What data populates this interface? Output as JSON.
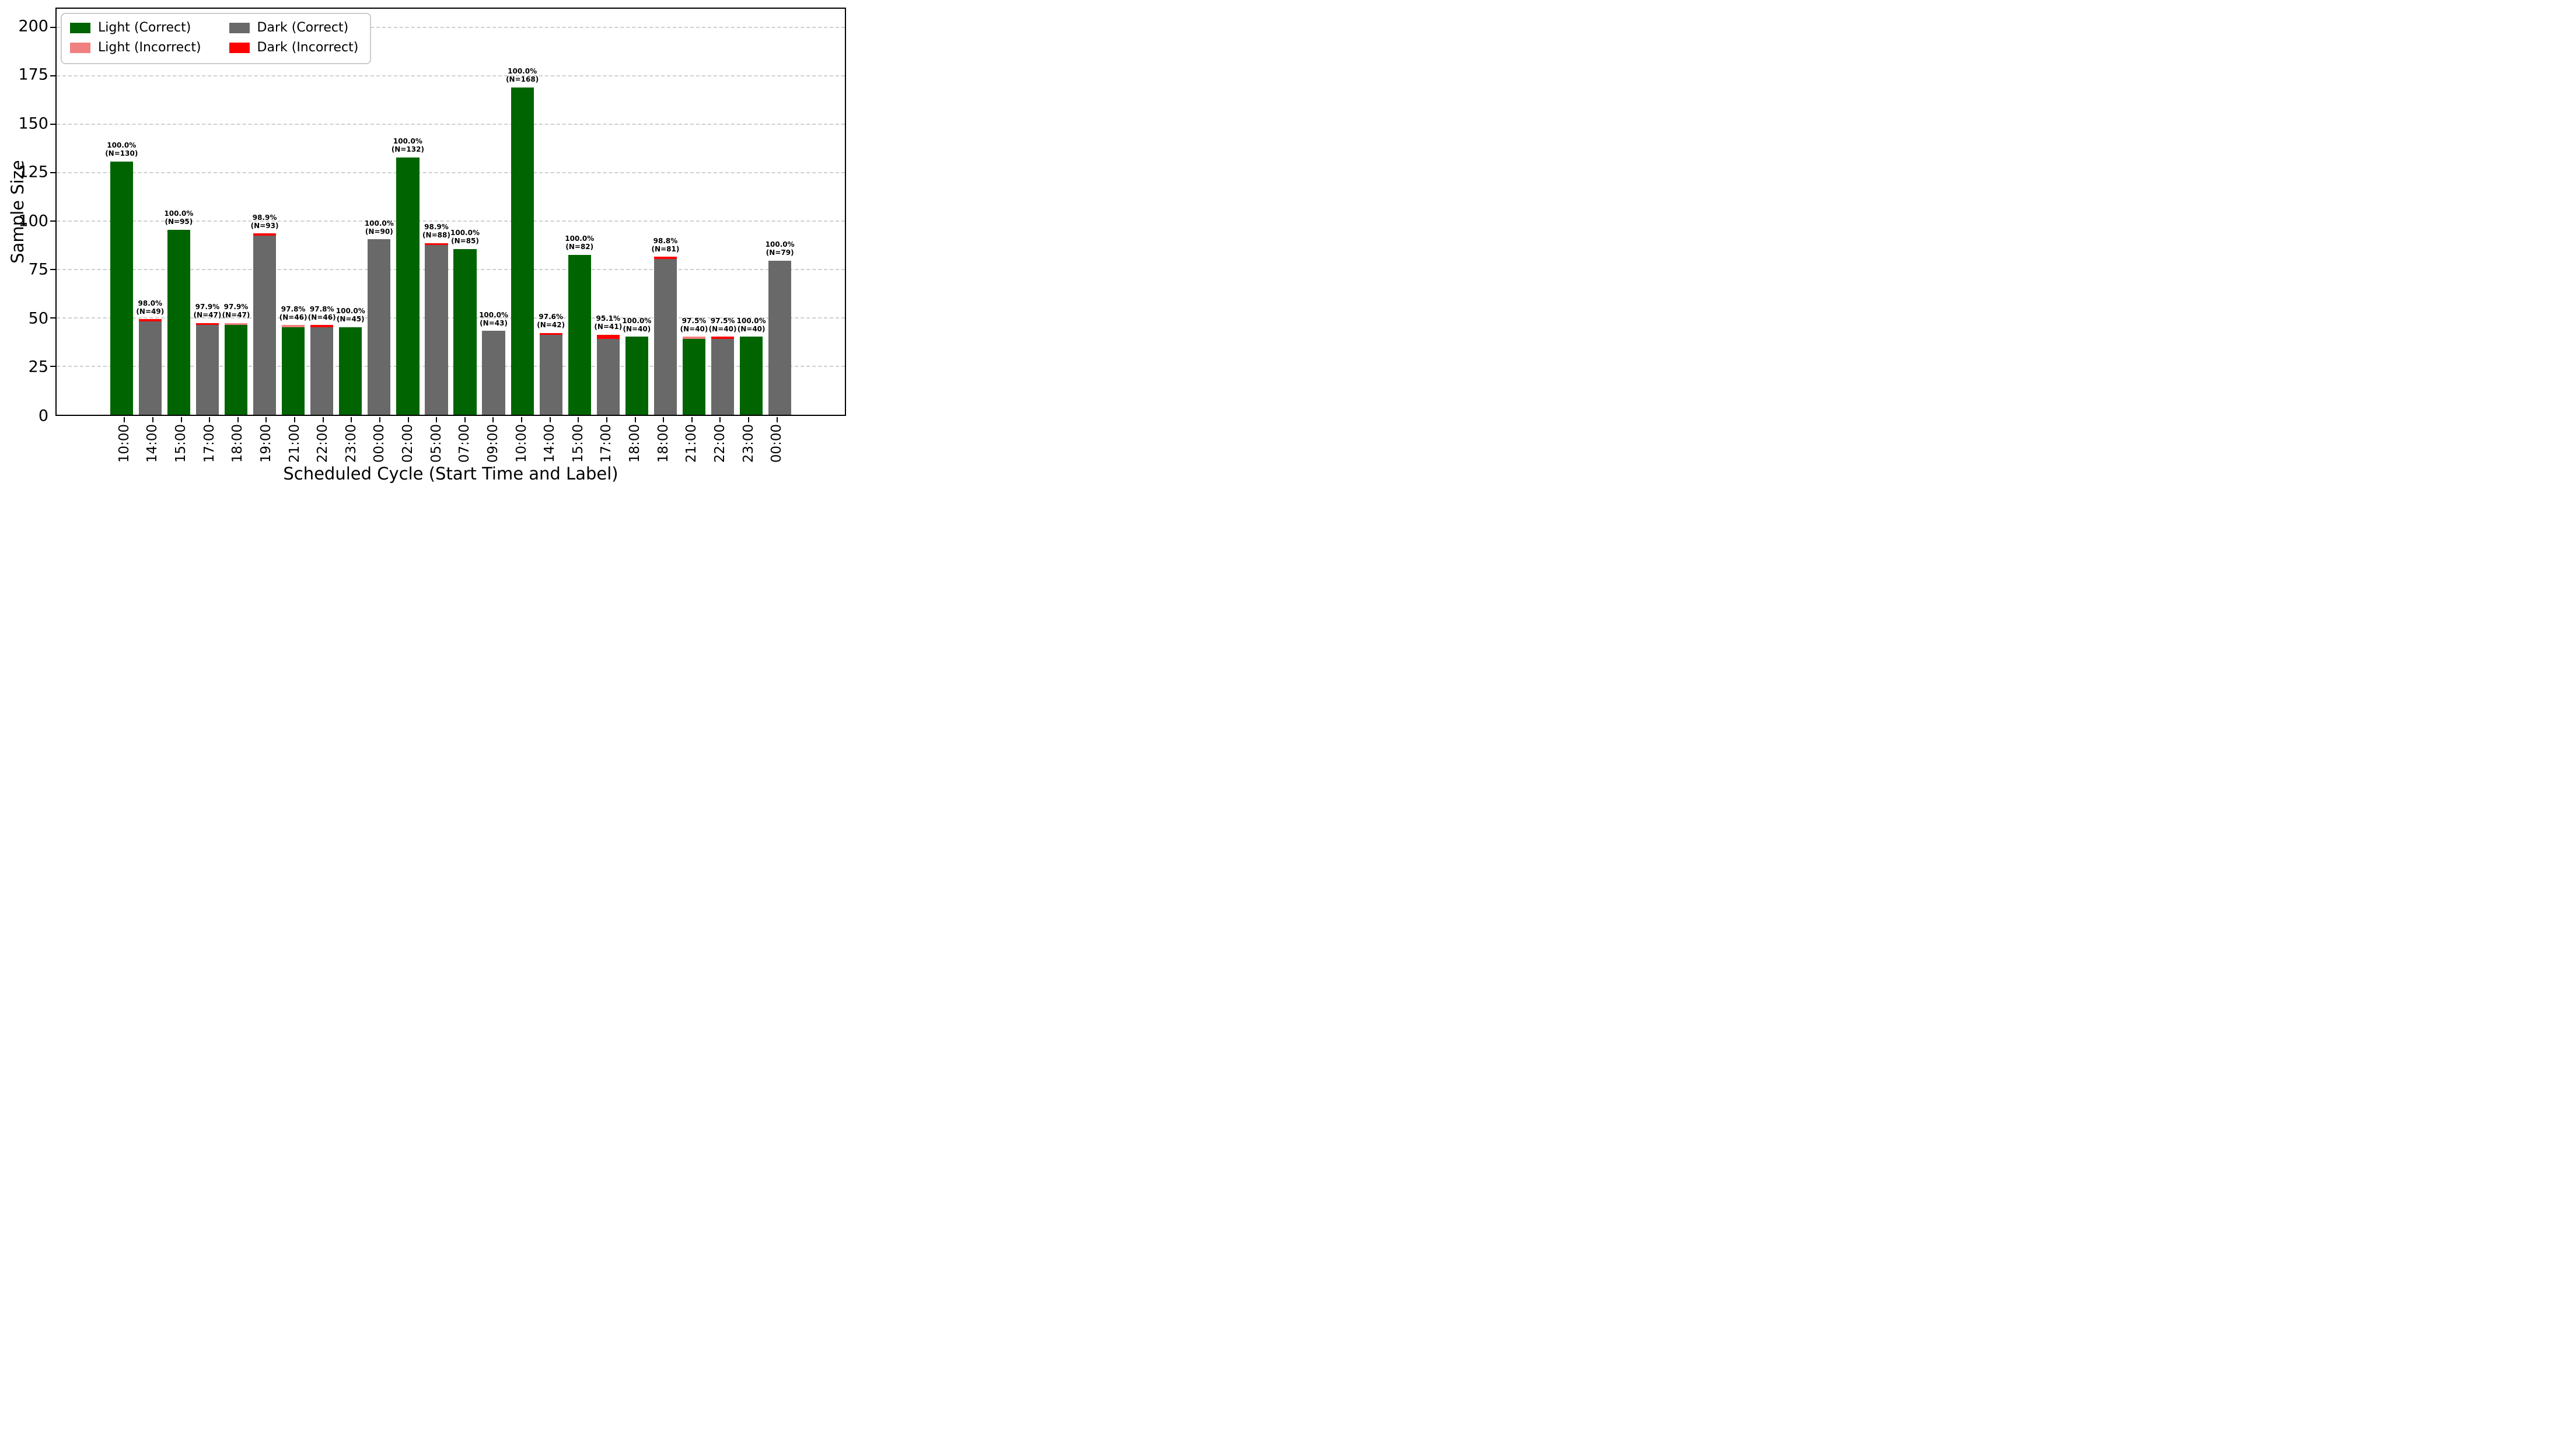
{
  "chart_data": {
    "type": "bar",
    "stacked": true,
    "title": "",
    "xlabel": "Scheduled Cycle (Start Time and Label)",
    "ylabel": "Sample Size",
    "ylim": [
      0,
      200
    ],
    "yticks": [
      0,
      25,
      50,
      75,
      100,
      125,
      150,
      175,
      200
    ],
    "grid": "horizontal-dashed",
    "legend_position": "upper-left",
    "colors": {
      "light_correct": "#006400",
      "light_incorrect": "#F08080",
      "dark_correct": "#696969",
      "dark_incorrect": "#FF0000"
    },
    "legend": [
      {
        "label": "Light (Correct)",
        "color": "#006400"
      },
      {
        "label": "Light (Incorrect)",
        "color": "#F08080"
      },
      {
        "label": "Dark (Correct)",
        "color": "#696969"
      },
      {
        "label": "Dark (Incorrect)",
        "color": "#FF0000"
      }
    ],
    "bars": [
      {
        "x": "10:00",
        "mode": "light",
        "n": 130,
        "correct": 130,
        "incorrect": 0,
        "pct_label": "100.0%",
        "n_label": "(N=130)"
      },
      {
        "x": "14:00",
        "mode": "dark",
        "n": 49,
        "correct": 48,
        "incorrect": 1,
        "pct_label": "98.0%",
        "n_label": "(N=49)"
      },
      {
        "x": "15:00",
        "mode": "light",
        "n": 95,
        "correct": 95,
        "incorrect": 0,
        "pct_label": "100.0%",
        "n_label": "(N=95)"
      },
      {
        "x": "17:00",
        "mode": "dark",
        "n": 47,
        "correct": 46,
        "incorrect": 1,
        "pct_label": "97.9%",
        "n_label": "(N=47)"
      },
      {
        "x": "18:00",
        "mode": "light",
        "n": 47,
        "correct": 46,
        "incorrect": 1,
        "pct_label": "97.9%",
        "n_label": "(N=47)"
      },
      {
        "x": "19:00",
        "mode": "dark",
        "n": 93,
        "correct": 92,
        "incorrect": 1,
        "pct_label": "98.9%",
        "n_label": "(N=93)"
      },
      {
        "x": "21:00",
        "mode": "light",
        "n": 46,
        "correct": 45,
        "incorrect": 1,
        "pct_label": "97.8%",
        "n_label": "(N=46)"
      },
      {
        "x": "22:00",
        "mode": "dark",
        "n": 46,
        "correct": 45,
        "incorrect": 1,
        "pct_label": "97.8%",
        "n_label": "(N=46)"
      },
      {
        "x": "23:00",
        "mode": "light",
        "n": 45,
        "correct": 45,
        "incorrect": 0,
        "pct_label": "100.0%",
        "n_label": "(N=45)"
      },
      {
        "x": "00:00",
        "mode": "dark",
        "n": 90,
        "correct": 90,
        "incorrect": 0,
        "pct_label": "100.0%",
        "n_label": "(N=90)"
      },
      {
        "x": "02:00",
        "mode": "light",
        "n": 132,
        "correct": 132,
        "incorrect": 0,
        "pct_label": "100.0%",
        "n_label": "(N=132)"
      },
      {
        "x": "05:00",
        "mode": "dark",
        "n": 88,
        "correct": 87,
        "incorrect": 1,
        "pct_label": "98.9%",
        "n_label": "(N=88)"
      },
      {
        "x": "07:00",
        "mode": "light",
        "n": 85,
        "correct": 85,
        "incorrect": 0,
        "pct_label": "100.0%",
        "n_label": "(N=85)"
      },
      {
        "x": "09:00",
        "mode": "dark",
        "n": 43,
        "correct": 43,
        "incorrect": 0,
        "pct_label": "100.0%",
        "n_label": "(N=43)"
      },
      {
        "x": "10:00",
        "mode": "light",
        "n": 168,
        "correct": 168,
        "incorrect": 0,
        "pct_label": "100.0%",
        "n_label": "(N=168)"
      },
      {
        "x": "14:00",
        "mode": "dark",
        "n": 42,
        "correct": 41,
        "incorrect": 1,
        "pct_label": "97.6%",
        "n_label": "(N=42)"
      },
      {
        "x": "15:00",
        "mode": "light",
        "n": 82,
        "correct": 82,
        "incorrect": 0,
        "pct_label": "100.0%",
        "n_label": "(N=82)"
      },
      {
        "x": "17:00",
        "mode": "dark",
        "n": 41,
        "correct": 39,
        "incorrect": 2,
        "pct_label": "95.1%",
        "n_label": "(N=41)"
      },
      {
        "x": "18:00",
        "mode": "light",
        "n": 40,
        "correct": 40,
        "incorrect": 0,
        "pct_label": "100.0%",
        "n_label": "(N=40)"
      },
      {
        "x": "18:00",
        "mode": "dark",
        "n": 81,
        "correct": 80,
        "incorrect": 1,
        "pct_label": "98.8%",
        "n_label": "(N=81)"
      },
      {
        "x": "21:00",
        "mode": "light",
        "n": 40,
        "correct": 39,
        "incorrect": 1,
        "pct_label": "97.5%",
        "n_label": "(N=40)"
      },
      {
        "x": "22:00",
        "mode": "dark",
        "n": 40,
        "correct": 39,
        "incorrect": 1,
        "pct_label": "97.5%",
        "n_label": "(N=40)"
      },
      {
        "x": "23:00",
        "mode": "light",
        "n": 40,
        "correct": 40,
        "incorrect": 0,
        "pct_label": "100.0%",
        "n_label": "(N=40)"
      },
      {
        "x": "00:00",
        "mode": "dark",
        "n": 79,
        "correct": 79,
        "incorrect": 0,
        "pct_label": "100.0%",
        "n_label": "(N=79)"
      }
    ]
  }
}
